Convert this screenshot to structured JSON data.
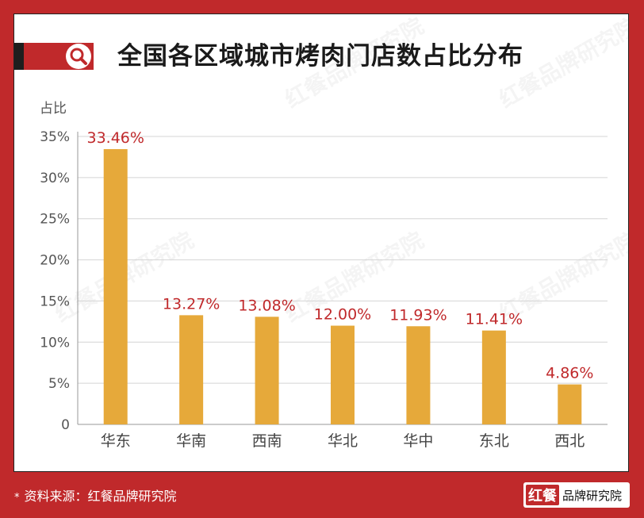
{
  "title": "全国各区域城市烤肉门店数占比分布",
  "footer": {
    "star": "*",
    "source": "资料来源：红餐品牌研究院"
  },
  "logo": {
    "mark": "红餐",
    "text": "品牌研究院"
  },
  "watermark": "红餐品牌研究院",
  "colors": {
    "brand": "#c0292b",
    "bar": "#e6a93a",
    "value_label": "#c0292b"
  },
  "icons": {
    "title_icon": "search-icon"
  },
  "chart_data": {
    "type": "bar",
    "ylabel": "占比",
    "categories": [
      "华东",
      "华南",
      "西南",
      "华北",
      "华中",
      "东北",
      "西北"
    ],
    "values": [
      33.46,
      13.27,
      13.08,
      12.0,
      11.93,
      11.41,
      4.86
    ],
    "value_labels": [
      "33.46%",
      "13.27%",
      "13.08%",
      "12.00%",
      "11.93%",
      "11.41%",
      "4.86%"
    ],
    "ylim": [
      0,
      35
    ],
    "yticks": [
      0,
      5,
      10,
      15,
      20,
      25,
      30,
      35
    ],
    "ytick_labels": [
      "0",
      "5%",
      "10%",
      "15%",
      "20%",
      "25%",
      "30%",
      "35%"
    ],
    "grid": true
  }
}
